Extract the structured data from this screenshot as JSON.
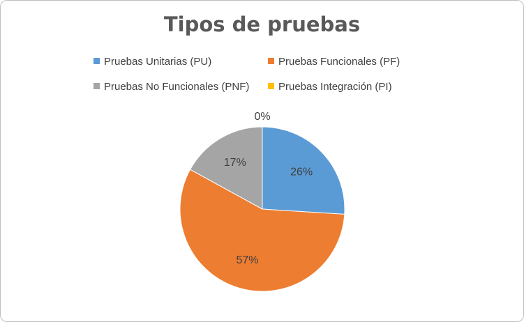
{
  "chart_data": {
    "type": "pie",
    "title": "Tipos de pruebas",
    "slices": [
      {
        "name": "Pruebas Unitarias (PU)",
        "value": 26,
        "label": "26%",
        "color": "#5b9bd5"
      },
      {
        "name": "Pruebas Funcionales (PF)",
        "value": 57,
        "label": "57%",
        "color": "#ed7d31"
      },
      {
        "name": "Pruebas No Funcionales (PNF)",
        "value": 17,
        "label": "17%",
        "color": "#a5a5a5"
      },
      {
        "name": "Pruebas Integración (PI)",
        "value": 0,
        "label": "0%",
        "color": "#ffc000"
      }
    ],
    "legend_position": "top"
  }
}
